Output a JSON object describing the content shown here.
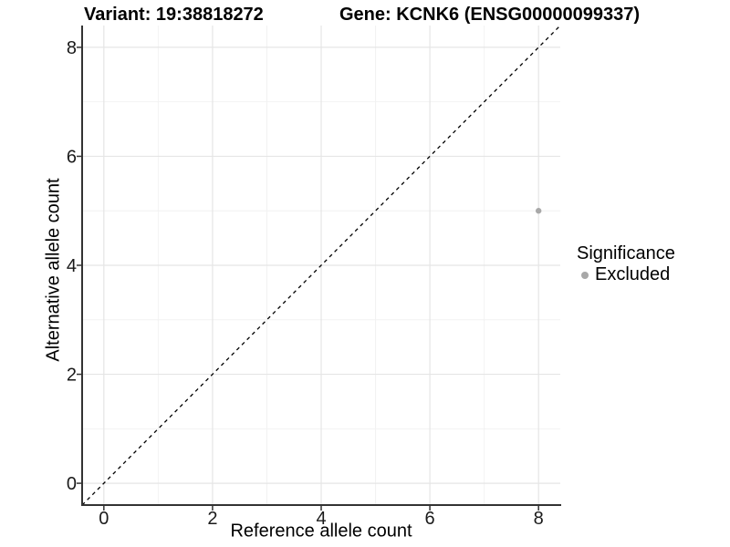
{
  "titles": {
    "variant": "Variant: 19:38818272",
    "gene": "Gene: KCNK6 (ENSG00000099337)"
  },
  "chart_data": {
    "type": "scatter",
    "xlabel": "Reference allele count",
    "ylabel": "Alternative allele count",
    "xlim": [
      -0.4,
      8.4
    ],
    "ylim": [
      -0.4,
      8.4
    ],
    "x_major_ticks": [
      0,
      2,
      4,
      6,
      8
    ],
    "y_major_ticks": [
      0,
      2,
      4,
      6,
      8
    ],
    "x_minor_ticks": [
      1,
      3,
      5,
      7
    ],
    "y_minor_ticks": [
      1,
      3,
      5,
      7
    ],
    "grid": true,
    "points": [
      {
        "x": 8,
        "y": 5,
        "series": "Excluded"
      }
    ],
    "abline": {
      "slope": 1,
      "intercept": 0,
      "style": "dashed"
    },
    "legend": {
      "title": "Significance",
      "position": "right",
      "items": [
        {
          "label": "Excluded",
          "color": "#a8a8a8"
        }
      ]
    }
  },
  "colors": {
    "point": "#a8a8a8",
    "grid_major": "#e5e5e5",
    "grid_minor": "#f2f2f2",
    "axis_line": "#333333",
    "tick_mark": "#333333",
    "tick_label": "#1a1a1a",
    "abline": "#000000",
    "background": "#ffffff"
  }
}
